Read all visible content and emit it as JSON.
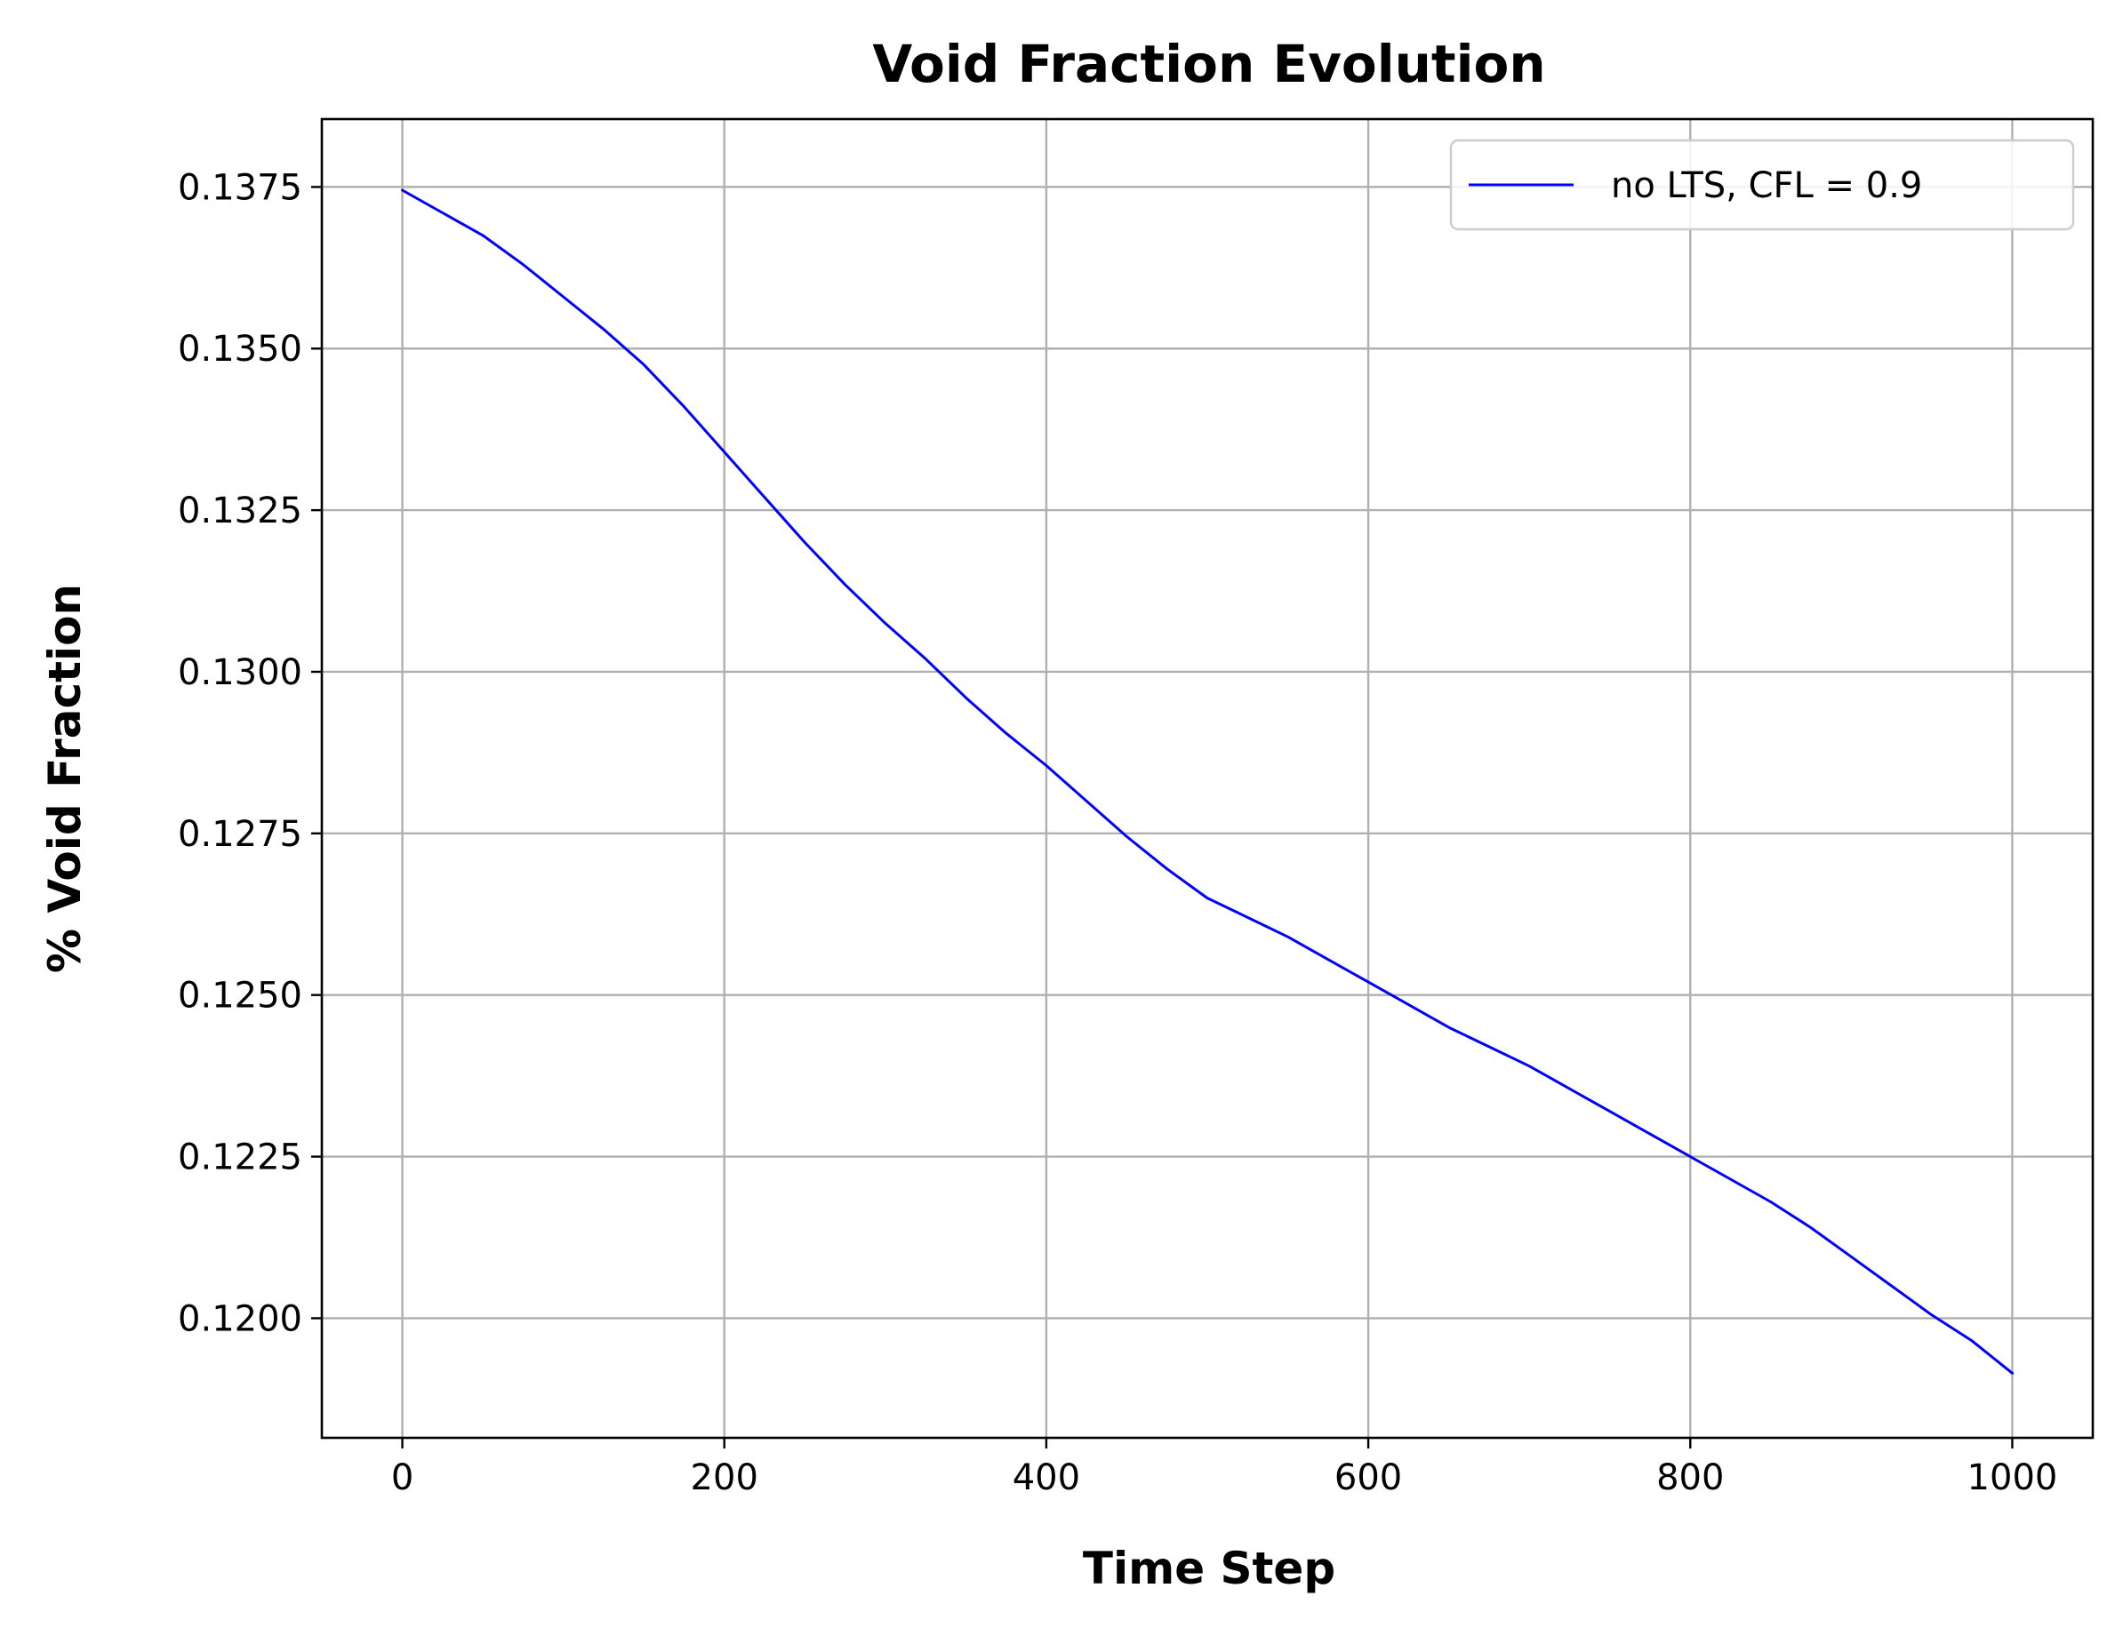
{
  "chart_data": {
    "type": "line",
    "title": "Void Fraction Evolution",
    "xlabel": "Time Step",
    "ylabel": "% Void Fraction",
    "xlim": [
      -50,
      1050
    ],
    "ylim": [
      0.11815,
      0.13855
    ],
    "xticks": [
      0,
      200,
      400,
      600,
      800,
      1000
    ],
    "xtick_labels": [
      "0",
      "200",
      "400",
      "600",
      "800",
      "1000"
    ],
    "yticks": [
      0.12,
      0.1225,
      0.125,
      0.1275,
      0.13,
      0.1325,
      0.135,
      0.1375
    ],
    "ytick_labels": [
      "0.1200",
      "0.1225",
      "0.1250",
      "0.1275",
      "0.1300",
      "0.1325",
      "0.1350",
      "0.1375"
    ],
    "grid": true,
    "legend_position": "upper right",
    "series": [
      {
        "name": "no LTS, CFL = 0.9",
        "color": "#0000ff",
        "x": [
          0,
          25,
          50,
          75,
          100,
          125,
          150,
          175,
          200,
          225,
          250,
          275,
          300,
          325,
          350,
          375,
          400,
          425,
          450,
          475,
          500,
          525,
          550,
          575,
          600,
          625,
          650,
          675,
          700,
          725,
          750,
          775,
          800,
          825,
          850,
          875,
          900,
          925,
          950,
          975,
          1000
        ],
        "y": [
          0.13745,
          0.1371,
          0.13675,
          0.1363,
          0.1358,
          0.1353,
          0.13475,
          0.1341,
          0.1334,
          0.1327,
          0.132,
          0.13135,
          0.13075,
          0.1302,
          0.1296,
          0.12905,
          0.12855,
          0.128,
          0.12745,
          0.12695,
          0.1265,
          0.1262,
          0.1259,
          0.12555,
          0.1252,
          0.12485,
          0.1245,
          0.1242,
          0.1239,
          0.12355,
          0.1232,
          0.12285,
          0.1225,
          0.12215,
          0.1218,
          0.1214,
          0.12095,
          0.1205,
          0.12005,
          0.11965,
          0.11915
        ]
      }
    ]
  }
}
